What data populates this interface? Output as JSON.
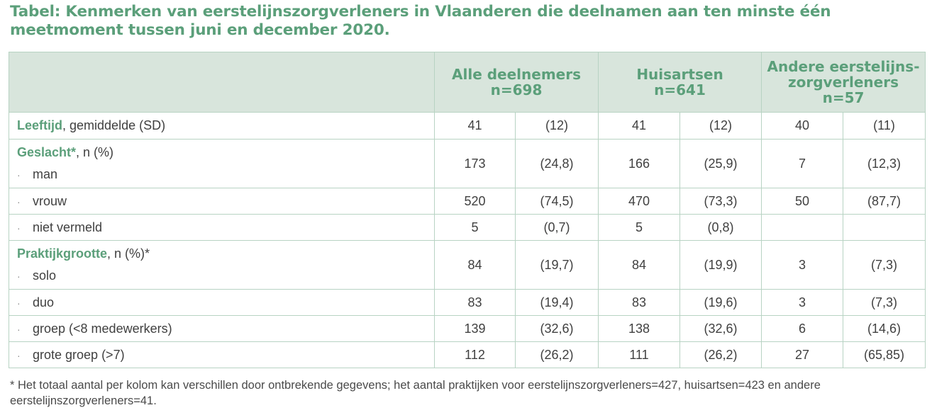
{
  "title": "Tabel: Kenmerken van eerstelijnszorgverleners in Vlaanderen die deelnamen aan ten minste één meetmoment tussen juni en december 2020.",
  "columns": [
    {
      "name": "Alle deelnemers",
      "n": "n=698"
    },
    {
      "name": "Huisartsen",
      "n": "n=641"
    },
    {
      "name_line1": "Andere eerstelijns-",
      "name_line2": "zorgverleners",
      "n": "n=57"
    }
  ],
  "rows": {
    "leeftijd": {
      "label_bold": "Leeftijd",
      "label_rest": ", gemiddelde (SD)",
      "values": [
        "41",
        "(12)",
        "41",
        "(12)",
        "40",
        "(11)"
      ]
    },
    "geslacht": {
      "label_bold": "Geslacht*",
      "label_rest": ", n (%)"
    },
    "man": {
      "bullet": "·",
      "label": "man",
      "values": [
        "173",
        "(24,8)",
        "166",
        "(25,9)",
        "7",
        "(12,3)"
      ]
    },
    "vrouw": {
      "bullet": "·",
      "label": "vrouw",
      "values": [
        "520",
        "(74,5)",
        "470",
        "(73,3)",
        "50",
        "(87,7)"
      ]
    },
    "niet_vermeld": {
      "bullet": "·",
      "label": "niet vermeld",
      "values": [
        "5",
        "(0,7)",
        "5",
        "(0,8)",
        "",
        ""
      ]
    },
    "praktijk": {
      "label_bold": "Praktijkgrootte",
      "label_rest": ", n (%)*"
    },
    "solo": {
      "bullet": "·",
      "label": "solo",
      "values": [
        "84",
        "(19,7)",
        "84",
        "(19,9)",
        "3",
        "(7,3)"
      ]
    },
    "duo": {
      "bullet": "·",
      "label": "duo",
      "values": [
        "83",
        "(19,4)",
        "83",
        "(19,6)",
        "3",
        "(7,3)"
      ]
    },
    "groep": {
      "bullet": "·",
      "label": "groep (<8 medewerkers)",
      "values": [
        "139",
        "(32,6)",
        "138",
        "(32,6)",
        "6",
        "(14,6)"
      ]
    },
    "grote_groep": {
      "bullet": "·",
      "label": "grote groep (>7)",
      "values": [
        "112",
        "(26,2)",
        "111",
        "(26,2)",
        "27",
        "(65,85)"
      ]
    }
  },
  "footnote": "*  Het totaal aantal per kolom kan verschillen door ontbrekende gegevens; het aantal praktijken voor eerstelijnszorgverleners=427, huisartsen=423 en andere eerstelijnszorgverleners=41."
}
